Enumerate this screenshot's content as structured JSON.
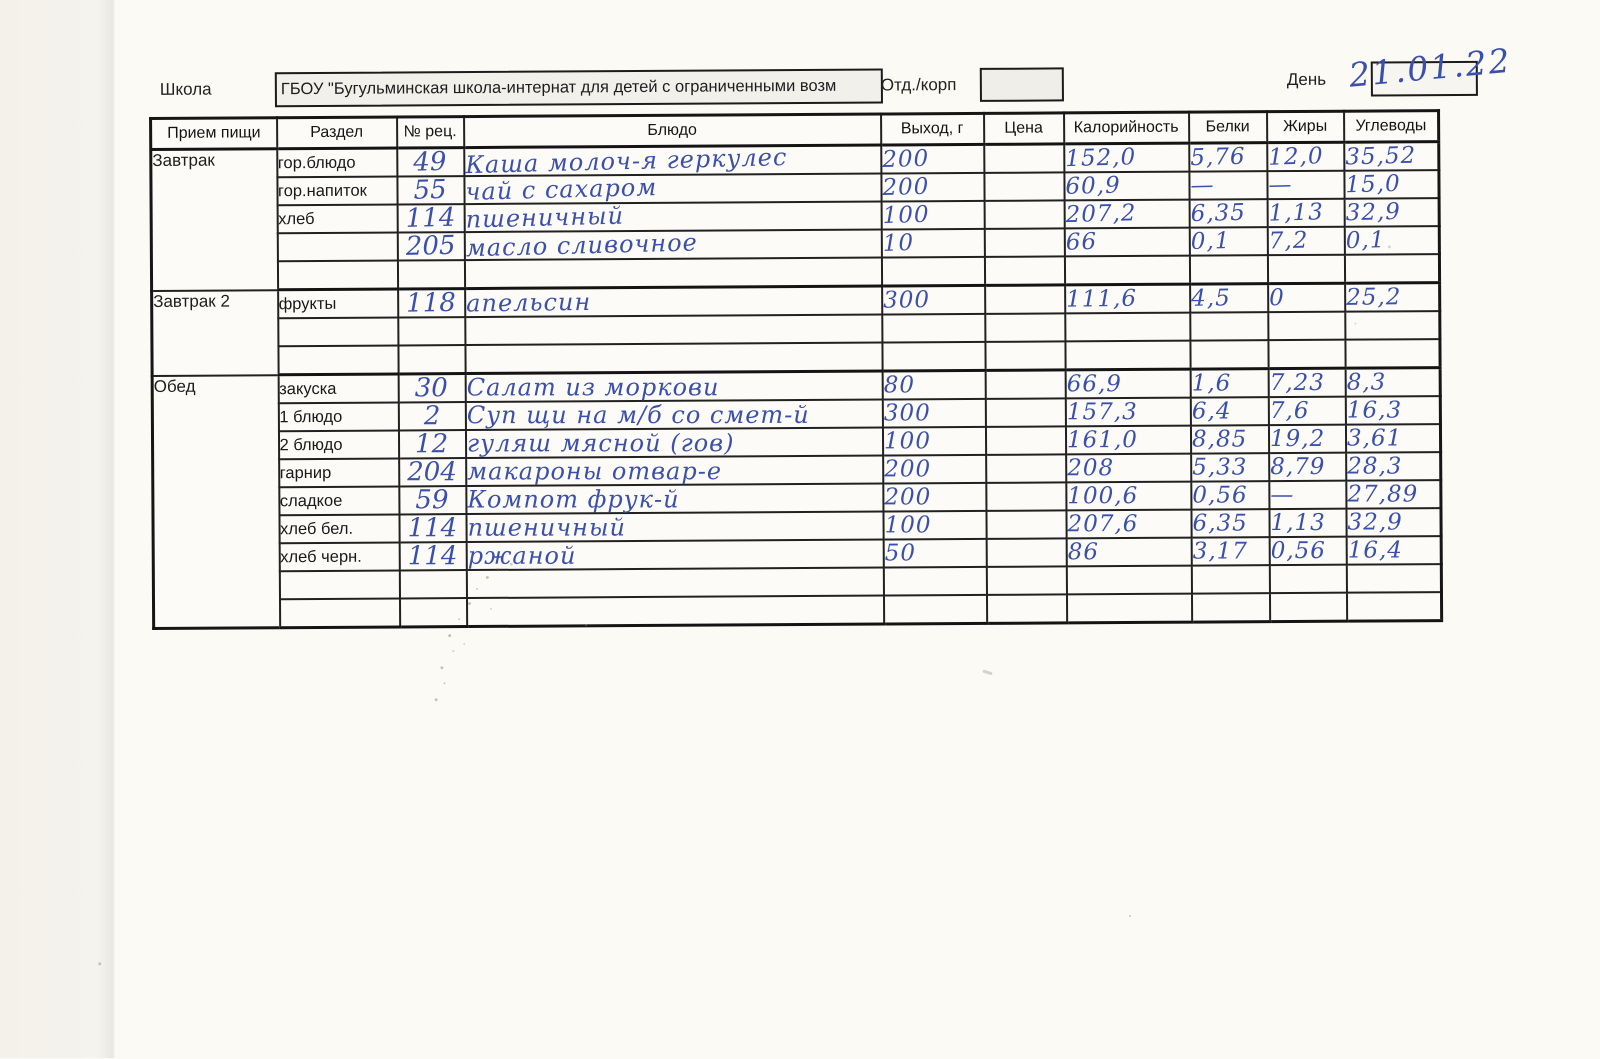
{
  "page": {
    "school_label": "Школа",
    "school_name": "ГБОУ \"Бугульминская школа-интернат для детей с ограниченными возм",
    "dept_label": "Отд./корп",
    "dept_value": "",
    "day_label": "День",
    "day_value": "21.01.22"
  },
  "colors": {
    "ink_blue": "#3b50ac",
    "line_black": "#1b1b1b",
    "paper": "#fbfaf5"
  },
  "table": {
    "headers": [
      "Прием пищи",
      "Раздел",
      "№ рец.",
      "Блюдо",
      "Выход, г",
      "Цена",
      "Калорийность",
      "Белки",
      "Жиры",
      "Углеводы"
    ],
    "sections": [
      {
        "meal": "Завтрак",
        "rows": [
          {
            "razdel": "гор.блюдо",
            "rec": "49",
            "dish": "Каша молоч-я геркулес",
            "out": "200",
            "price": "",
            "kcal": "152,0",
            "protein": "5,76",
            "fat": "12,0",
            "carbs": "35,52"
          },
          {
            "razdel": "гор.напиток",
            "rec": "55",
            "dish": "чай с сахаром",
            "out": "200",
            "price": "",
            "kcal": "60,9",
            "protein": "—",
            "fat": "—",
            "carbs": "15,0"
          },
          {
            "razdel": "хлеб",
            "rec": "114",
            "dish": "пшеничный",
            "out": "100",
            "price": "",
            "kcal": "207,2",
            "protein": "6,35",
            "fat": "1,13",
            "carbs": "32,9"
          },
          {
            "razdel": "",
            "rec": "205",
            "dish": "масло  сливочное",
            "out": "10",
            "price": "",
            "kcal": "66",
            "protein": "0,1",
            "fat": "7,2",
            "carbs": "0,1"
          },
          {
            "razdel": "",
            "rec": "",
            "dish": "",
            "out": "",
            "price": "",
            "kcal": "",
            "protein": "",
            "fat": "",
            "carbs": ""
          }
        ]
      },
      {
        "meal": "Завтрак 2",
        "rows": [
          {
            "razdel": "фрукты",
            "rec": "118",
            "dish": "апельсин",
            "out": "300",
            "price": "",
            "kcal": "111,6",
            "protein": "4,5",
            "fat": "0",
            "carbs": "25,2"
          },
          {
            "razdel": "",
            "rec": "",
            "dish": "",
            "out": "",
            "price": "",
            "kcal": "",
            "protein": "",
            "fat": "",
            "carbs": ""
          },
          {
            "razdel": "",
            "rec": "",
            "dish": "",
            "out": "",
            "price": "",
            "kcal": "",
            "protein": "",
            "fat": "",
            "carbs": ""
          }
        ]
      },
      {
        "meal": "Обед",
        "rows": [
          {
            "razdel": "закуска",
            "rec": "30",
            "dish": "Салат из моркови",
            "out": "80",
            "price": "",
            "kcal": "66,9",
            "protein": "1,6",
            "fat": "7,23",
            "carbs": "8,3"
          },
          {
            "razdel": "1 блюдо",
            "rec": "2",
            "dish": "Суп щи на м/б со смет-й",
            "out": "300",
            "price": "",
            "kcal": "157,3",
            "protein": "6,4",
            "fat": "7,6",
            "carbs": "16,3"
          },
          {
            "razdel": "2 блюдо",
            "rec": "12",
            "dish": "гуляш мясной (гов)",
            "out": "100",
            "price": "",
            "kcal": "161,0",
            "protein": "8,85",
            "fat": "19,2",
            "carbs": "3,61"
          },
          {
            "razdel": "гарнир",
            "rec": "204",
            "dish": "макароны отвар-е",
            "out": "200",
            "price": "",
            "kcal": "208",
            "protein": "5,33",
            "fat": "8,79",
            "carbs": "28,3"
          },
          {
            "razdel": "сладкое",
            "rec": "59",
            "dish": "Компот фрук-й",
            "out": "200",
            "price": "",
            "kcal": "100,6",
            "protein": "0,56",
            "fat": "—",
            "carbs": "27,89"
          },
          {
            "razdel": "хлеб бел.",
            "rec": "114",
            "dish": "пшеничный",
            "out": "100",
            "price": "",
            "kcal": "207,6",
            "protein": "6,35",
            "fat": "1,13",
            "carbs": "32,9"
          },
          {
            "razdel": "хлеб черн.",
            "rec": "114",
            "dish": "ржаной",
            "out": "50",
            "price": "",
            "kcal": "86",
            "protein": "3,17",
            "fat": "0,56",
            "carbs": "16,4"
          },
          {
            "razdel": "",
            "rec": "",
            "dish": "",
            "out": "",
            "price": "",
            "kcal": "",
            "protein": "",
            "fat": "",
            "carbs": ""
          },
          {
            "razdel": "",
            "rec": "",
            "dish": "",
            "out": "",
            "price": "",
            "kcal": "",
            "protein": "",
            "fat": "",
            "carbs": ""
          }
        ]
      }
    ]
  }
}
